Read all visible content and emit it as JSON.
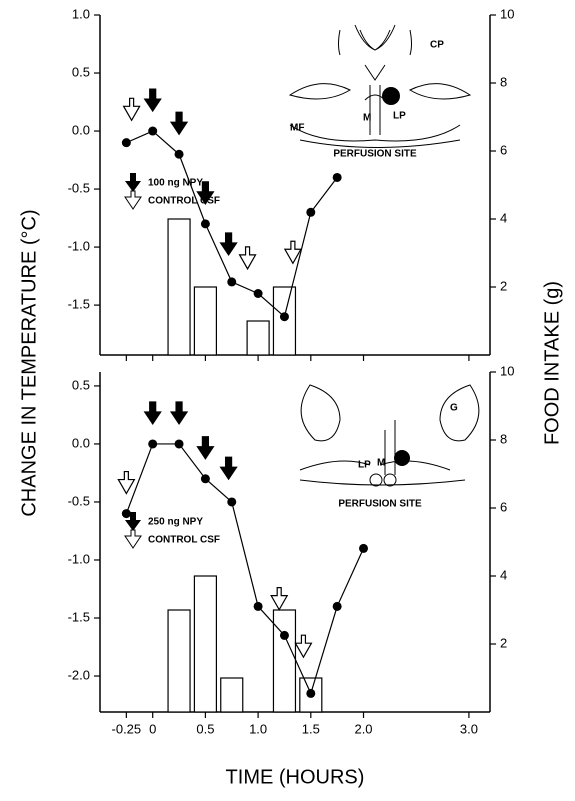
{
  "figure": {
    "ylabel": "CHANGE IN TEMPERATURE (°C)",
    "y2label": "FOOD INTAKE (g)",
    "xlabel": "TIME (HOURS)",
    "xlim": [
      -0.5,
      3.2
    ],
    "xticks": [
      -0.25,
      0,
      0.5,
      {
        "value": 1,
        "label": "1.0"
      },
      1.5,
      {
        "value": 2,
        "label": "2.0"
      },
      {
        "value": 3,
        "label": "3.0"
      }
    ]
  },
  "chart_data": [
    {
      "type": "line",
      "ylim": [
        -1.93,
        1.0
      ],
      "yticks": [
        {
          "value": 1,
          "label": "1.0"
        },
        0.5,
        {
          "value": 0,
          "label": "0.0"
        },
        -0.5,
        {
          "value": -1,
          "label": "-1.0"
        },
        -1.5
      ],
      "y2lim": [
        0,
        10
      ],
      "y2ticks": [
        2,
        4,
        6,
        8,
        10
      ],
      "x": [
        -0.25,
        0,
        0.25,
        0.5,
        0.75,
        1.0,
        1.25,
        1.5,
        1.75
      ],
      "values": [
        -0.1,
        0.0,
        -0.2,
        -0.8,
        -1.3,
        -1.4,
        -1.6,
        -0.7,
        -0.4
      ],
      "bars": {
        "x": [
          0.25,
          0.5,
          1.0,
          1.25
        ],
        "values": [
          4,
          2,
          1,
          2
        ]
      },
      "npy_arrows": [
        0,
        0.25,
        0.5,
        0.72
      ],
      "control_arrows": [
        -0.2,
        0.9,
        1.33
      ],
      "legend": [
        "100 ng NPY",
        "CONTROL CSF"
      ],
      "inset": {
        "labels": [
          "CP",
          "MF",
          "M",
          "LP"
        ],
        "caption": "PERFUSION SITE"
      }
    },
    {
      "type": "line",
      "ylim": [
        -2.31,
        0.62
      ],
      "yticks": [
        0.5,
        {
          "value": 0,
          "label": "0.0"
        },
        -0.5,
        {
          "value": -1,
          "label": "-1.0"
        },
        -1.5,
        {
          "value": -2,
          "label": "-2.0"
        }
      ],
      "y2lim": [
        0,
        10
      ],
      "y2ticks": [
        2,
        4,
        6,
        8,
        10
      ],
      "x": [
        -0.25,
        0,
        0.25,
        0.5,
        0.75,
        1.0,
        1.25,
        1.5,
        1.75,
        2.0
      ],
      "values": [
        -0.6,
        0.0,
        0.0,
        -0.3,
        -0.5,
        -1.4,
        -1.65,
        -2.15,
        -1.4,
        -0.9
      ],
      "bars": {
        "x": [
          0.25,
          0.5,
          0.75,
          1.25,
          1.5
        ],
        "values": [
          3,
          4,
          1,
          3,
          1
        ]
      },
      "npy_arrows": [
        0,
        0.25,
        0.5,
        0.72
      ],
      "control_arrows": [
        -0.25,
        1.2,
        1.43
      ],
      "legend": [
        "250 ng NPY",
        "CONTROL CSF"
      ],
      "inset": {
        "labels": [
          "G",
          "LP",
          "M"
        ],
        "caption": "PERFUSION SITE"
      }
    }
  ]
}
